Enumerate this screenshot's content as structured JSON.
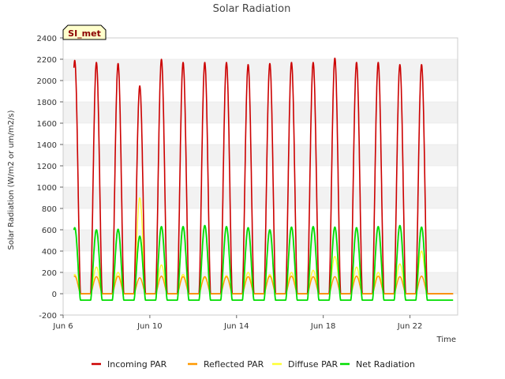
{
  "chart_data": {
    "type": "line",
    "title": "Solar Radiation",
    "xlabel": "Time",
    "ylabel": "Solar Radiation (W/m2 or um/m2/s)",
    "site_label": "SI_met",
    "xlim": [
      6.0,
      24.2
    ],
    "ylim": [
      -200,
      2400
    ],
    "yticks": [
      -200,
      0,
      200,
      400,
      600,
      800,
      1000,
      1200,
      1400,
      1600,
      1800,
      2000,
      2200,
      2400
    ],
    "xticks": [
      {
        "value": 6,
        "label": "Jun 6"
      },
      {
        "value": 10,
        "label": "Jun 10"
      },
      {
        "value": 14,
        "label": "Jun 14"
      },
      {
        "value": 18,
        "label": "Jun 18"
      },
      {
        "value": 22,
        "label": "Jun 22"
      }
    ],
    "days": [
      6,
      7,
      8,
      9,
      10,
      11,
      12,
      13,
      14,
      15,
      16,
      17,
      18,
      19,
      20,
      21,
      22
    ],
    "series": [
      {
        "name": "Incoming PAR",
        "color": "#cc0000",
        "night": 0,
        "values": [
          2190,
          2170,
          2160,
          1950,
          2200,
          2170,
          2170,
          2170,
          2150,
          2160,
          2170,
          2170,
          2210,
          2170,
          2170,
          2150,
          2150
        ]
      },
      {
        "name": "Reflected PAR",
        "color": "#ff9900",
        "night": 0,
        "values": [
          165,
          160,
          165,
          150,
          165,
          160,
          160,
          160,
          160,
          165,
          165,
          160,
          160,
          165,
          165,
          160,
          165
        ]
      },
      {
        "name": "Diffuse PAR",
        "color": "#ffff33",
        "night": 0,
        "values": [
          180,
          250,
          200,
          900,
          270,
          180,
          150,
          170,
          200,
          180,
          200,
          220,
          350,
          250,
          200,
          280,
          400
        ]
      },
      {
        "name": "Net Radiation",
        "color": "#00dd00",
        "night": -60,
        "values": [
          620,
          600,
          605,
          540,
          630,
          630,
          640,
          630,
          620,
          600,
          625,
          630,
          625,
          620,
          630,
          640,
          625
        ]
      }
    ],
    "legend_position": "bottom"
  }
}
